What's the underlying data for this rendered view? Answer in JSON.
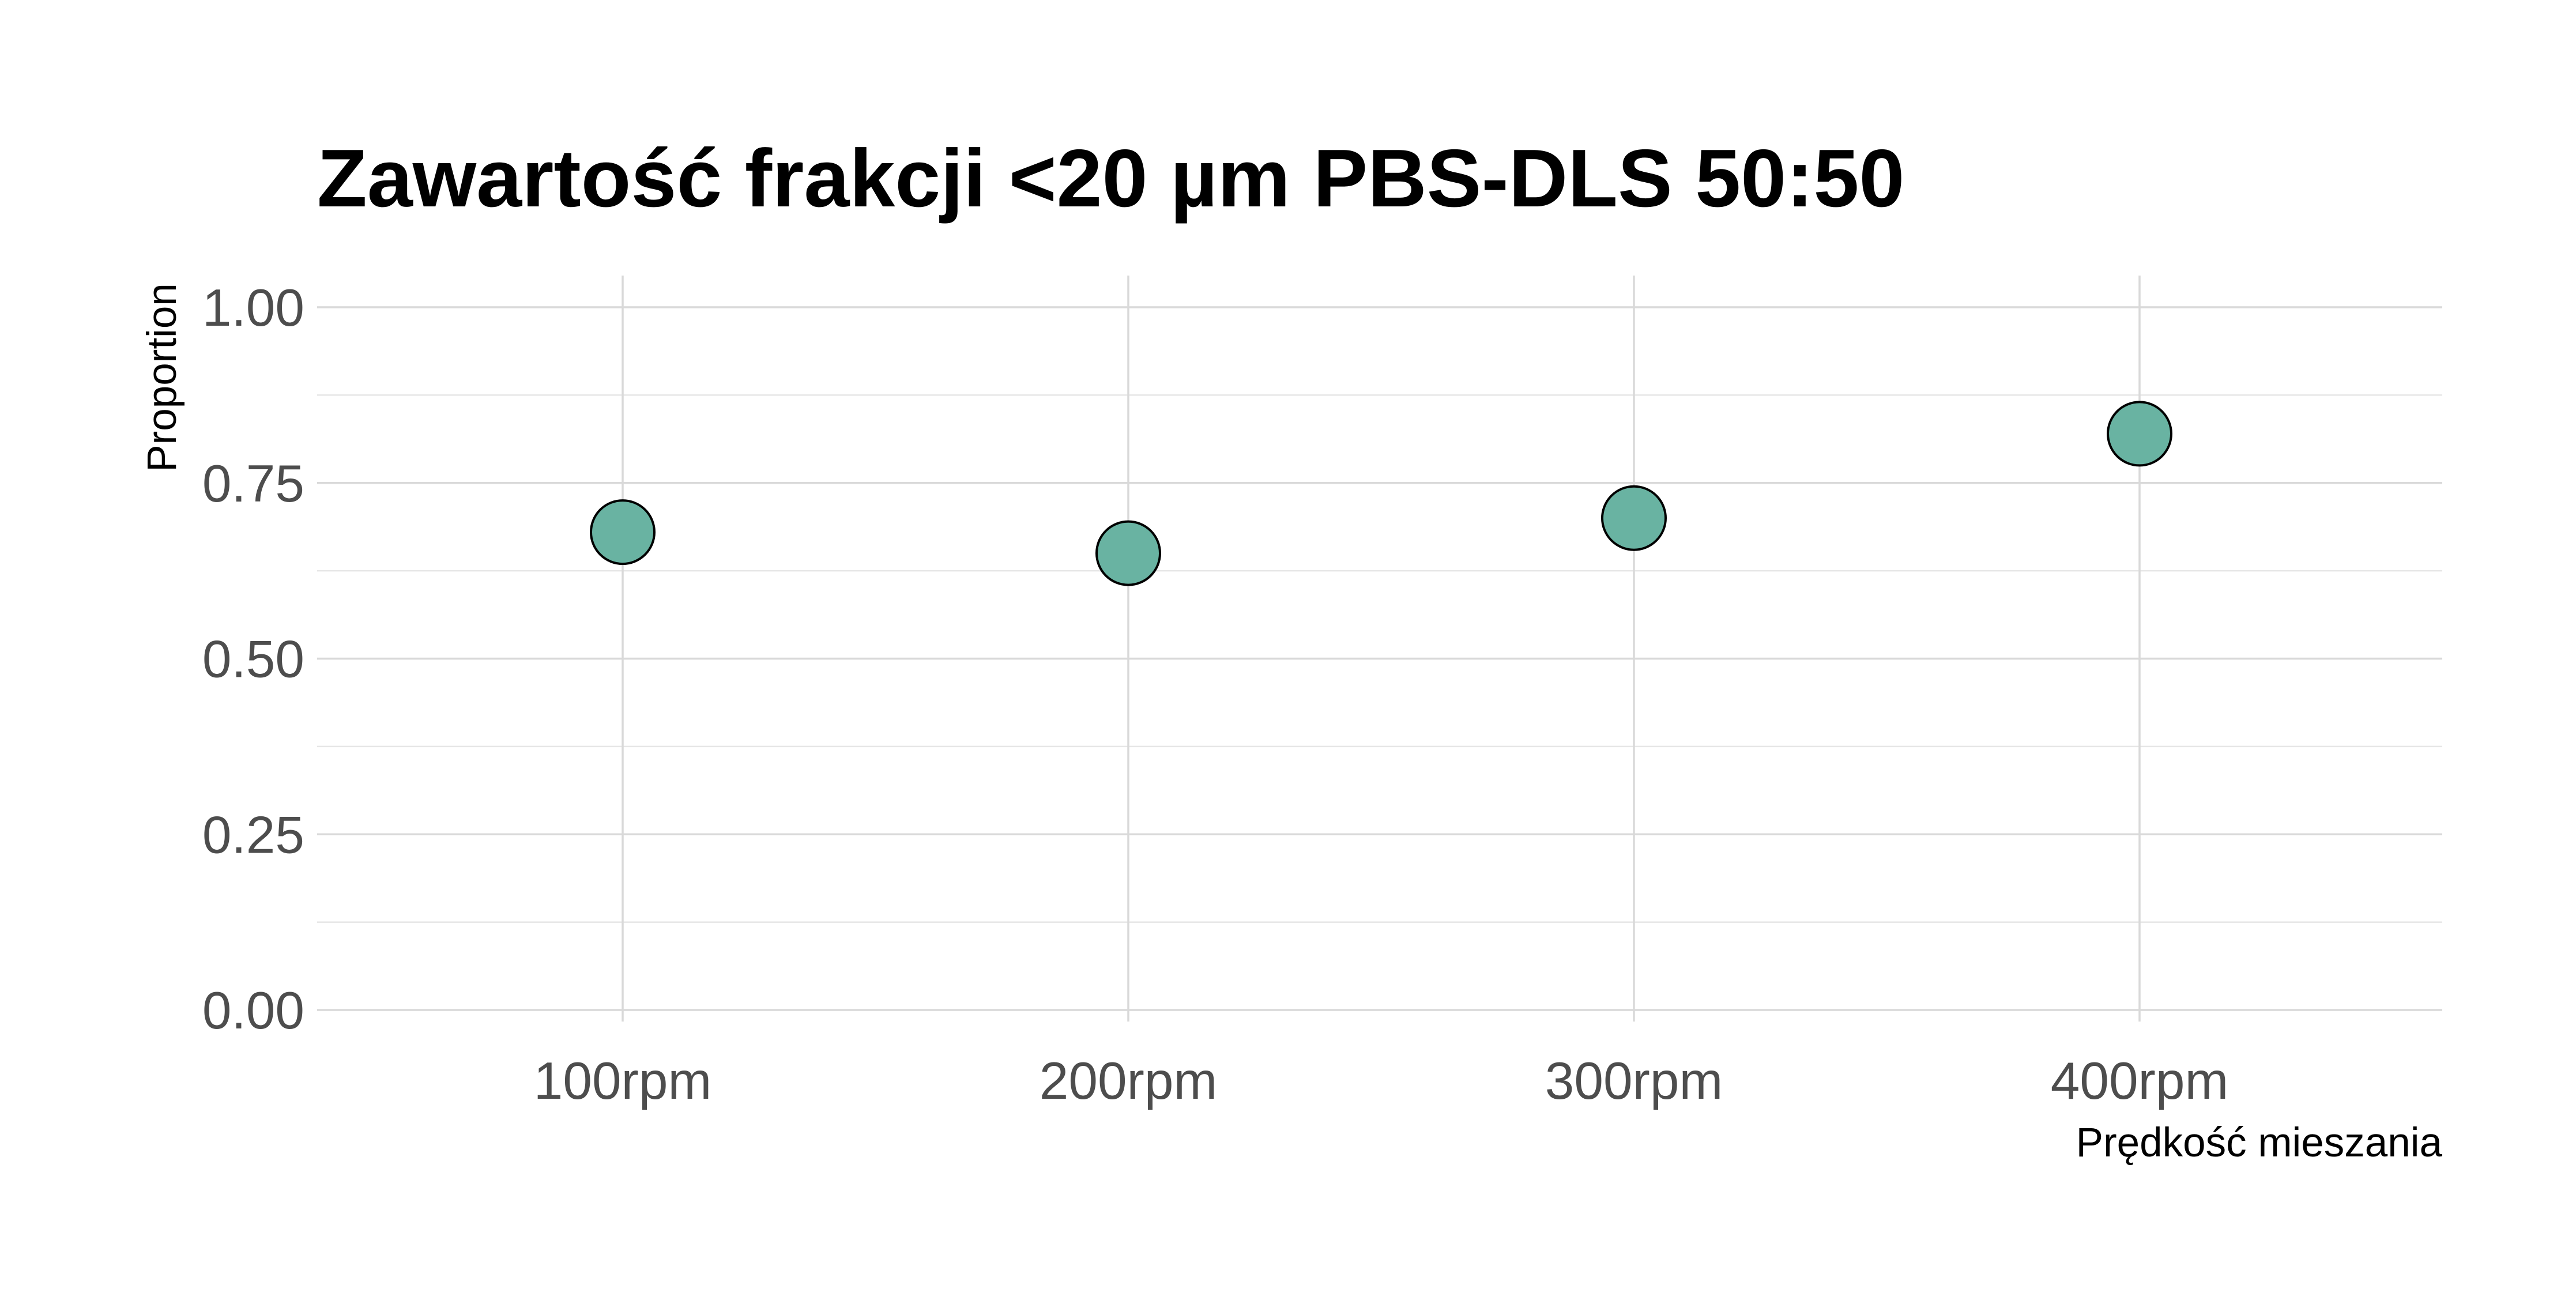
{
  "chart_data": {
    "type": "scatter",
    "title": "Zawartość frakcji <20 µm PBS-DLS 50:50",
    "xlabel": "Prędkość mieszania",
    "ylabel": "Proportion",
    "categories": [
      "100rpm",
      "200rpm",
      "300rpm",
      "400rpm"
    ],
    "values": [
      0.68,
      0.65,
      0.7,
      0.82
    ],
    "ylim": [
      0,
      1
    ],
    "yticks": [
      0,
      0.25,
      0.5,
      0.75,
      1
    ],
    "ytick_labels": [
      "0.00",
      "0.25",
      "0.50",
      "0.75",
      "1.00"
    ],
    "grid": true,
    "legend": "none",
    "colors": {
      "point_fill": "#69b3a2",
      "point_stroke": "#000000"
    }
  }
}
